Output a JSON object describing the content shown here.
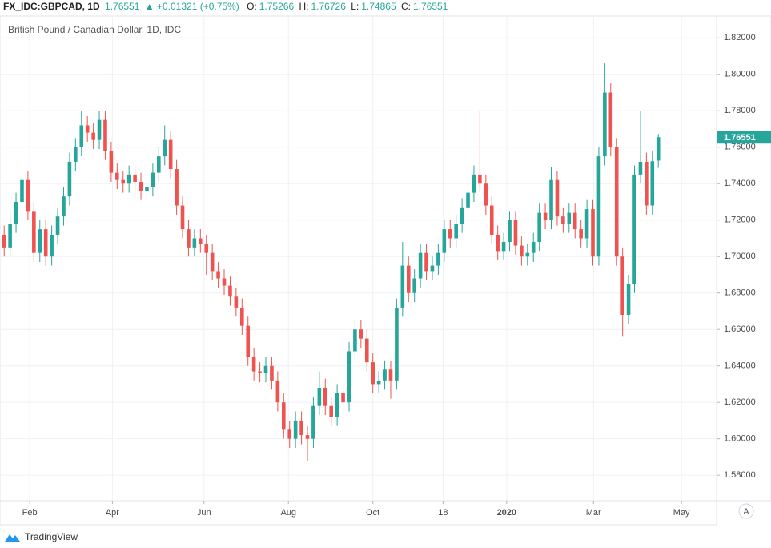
{
  "header": {
    "symbol": "FX_IDC:GBPCAD, 1D",
    "change": "+0.01321 (+0.75%)",
    "open_label": "O:",
    "high_label": "H:",
    "low_label": "L:",
    "close_label": "C:",
    "subtitle": "British Pound / Canadian Dollar, 1D, IDC"
  },
  "footer": {
    "brand": "TradingView",
    "auto_button": "A"
  },
  "chart_data": {
    "type": "candlestick",
    "up_color": "#26a69a",
    "down_color": "#ef5350",
    "grid": true,
    "xlim": [
      -0.7,
      119.8
    ],
    "ylim": [
      1.566,
      1.832
    ],
    "xticks": [
      {
        "value": 4.3,
        "label": "Feb"
      },
      {
        "value": 18.2,
        "label": "Apr"
      },
      {
        "value": 33.6,
        "label": "Jun"
      },
      {
        "value": 47.8,
        "label": "Aug"
      },
      {
        "value": 62.0,
        "label": "Oct"
      },
      {
        "value": 73.8,
        "label": "18"
      },
      {
        "value": 84.5,
        "label": "2020"
      },
      {
        "value": 99.1,
        "label": "Mar"
      },
      {
        "value": 113.9,
        "label": "May"
      }
    ],
    "yticks": [
      {
        "value": 1.58,
        "label": "1.58000"
      },
      {
        "value": 1.6,
        "label": "1.60000"
      },
      {
        "value": 1.62,
        "label": "1.62000"
      },
      {
        "value": 1.64,
        "label": "1.64000"
      },
      {
        "value": 1.66,
        "label": "1.66000"
      },
      {
        "value": 1.68,
        "label": "1.68000"
      },
      {
        "value": 1.7,
        "label": "1.70000"
      },
      {
        "value": 1.72,
        "label": "1.72000"
      },
      {
        "value": 1.74,
        "label": "1.74000"
      },
      {
        "value": 1.76,
        "label": "1.76000"
      },
      {
        "value": 1.78,
        "label": "1.78000"
      },
      {
        "value": 1.8,
        "label": "1.80000"
      },
      {
        "value": 1.82,
        "label": "1.82000"
      }
    ],
    "x": [
      0,
      1,
      2,
      3,
      4,
      5,
      6,
      7,
      8,
      9,
      10,
      11,
      12,
      13,
      14,
      15,
      16,
      17,
      18,
      19,
      20,
      21,
      22,
      23,
      24,
      25,
      26,
      27,
      28,
      29,
      30,
      31,
      32,
      33,
      34,
      35,
      36,
      37,
      38,
      39,
      40,
      41,
      42,
      43,
      44,
      45,
      46,
      47,
      48,
      49,
      50,
      51,
      52,
      53,
      54,
      55,
      56,
      57,
      58,
      59,
      60,
      61,
      62,
      63,
      64,
      65,
      66,
      67,
      68,
      69,
      70,
      71,
      72,
      73,
      74,
      75,
      76,
      77,
      78,
      79,
      80,
      81,
      82,
      83,
      84,
      85,
      86,
      87,
      88,
      89,
      90,
      91,
      92,
      93,
      94,
      95,
      96,
      97,
      98,
      99,
      100,
      101,
      102,
      103,
      104,
      105,
      106,
      107,
      108,
      109,
      110
    ],
    "open": [
      1.712,
      1.705,
      1.718,
      1.73,
      1.742,
      1.725,
      1.702,
      1.715,
      1.7,
      1.712,
      1.722,
      1.733,
      1.752,
      1.76,
      1.772,
      1.768,
      1.764,
      1.775,
      1.758,
      1.746,
      1.742,
      1.74,
      1.745,
      1.741,
      1.736,
      1.738,
      1.746,
      1.755,
      1.764,
      1.748,
      1.728,
      1.715,
      1.705,
      1.71,
      1.707,
      1.702,
      1.692,
      1.688,
      1.684,
      1.678,
      1.672,
      1.662,
      1.645,
      1.637,
      1.636,
      1.64,
      1.632,
      1.62,
      1.605,
      1.6,
      1.61,
      1.602,
      1.6,
      1.618,
      1.628,
      1.618,
      1.612,
      1.625,
      1.62,
      1.648,
      1.66,
      1.655,
      1.642,
      1.63,
      1.632,
      1.638,
      1.632,
      1.672,
      1.695,
      1.68,
      1.688,
      1.702,
      1.692,
      1.695,
      1.702,
      1.715,
      1.71,
      1.718,
      1.727,
      1.735,
      1.745,
      1.74,
      1.728,
      1.712,
      1.703,
      1.708,
      1.72,
      1.706,
      1.7,
      1.702,
      1.708,
      1.724,
      1.72,
      1.742,
      1.722,
      1.718,
      1.724,
      1.715,
      1.71,
      1.726,
      1.7,
      1.755,
      1.79,
      1.76,
      1.7,
      1.668,
      1.685,
      1.745,
      1.752,
      1.728,
      1.75266
    ],
    "high": [
      1.717,
      1.723,
      1.735,
      1.747,
      1.747,
      1.73,
      1.72,
      1.72,
      1.717,
      1.727,
      1.738,
      1.757,
      1.765,
      1.78,
      1.777,
      1.773,
      1.78,
      1.78,
      1.763,
      1.751,
      1.747,
      1.75,
      1.75,
      1.746,
      1.743,
      1.751,
      1.76,
      1.772,
      1.769,
      1.753,
      1.733,
      1.72,
      1.715,
      1.715,
      1.712,
      1.707,
      1.697,
      1.693,
      1.689,
      1.683,
      1.677,
      1.667,
      1.65,
      1.642,
      1.645,
      1.645,
      1.637,
      1.625,
      1.61,
      1.615,
      1.615,
      1.607,
      1.623,
      1.637,
      1.633,
      1.623,
      1.63,
      1.63,
      1.653,
      1.665,
      1.665,
      1.66,
      1.647,
      1.637,
      1.643,
      1.643,
      1.677,
      1.708,
      1.7,
      1.693,
      1.707,
      1.707,
      1.7,
      1.707,
      1.72,
      1.72,
      1.723,
      1.732,
      1.74,
      1.75,
      1.78,
      1.745,
      1.733,
      1.717,
      1.713,
      1.725,
      1.725,
      1.711,
      1.707,
      1.713,
      1.729,
      1.729,
      1.749,
      1.747,
      1.727,
      1.729,
      1.729,
      1.72,
      1.731,
      1.731,
      1.76,
      1.806,
      1.795,
      1.765,
      1.705,
      1.69,
      1.75,
      1.78,
      1.757,
      1.758,
      1.76726
    ],
    "low": [
      1.7,
      1.7,
      1.713,
      1.725,
      1.72,
      1.697,
      1.697,
      1.695,
      1.695,
      1.707,
      1.717,
      1.728,
      1.747,
      1.755,
      1.763,
      1.759,
      1.759,
      1.753,
      1.741,
      1.737,
      1.735,
      1.735,
      1.736,
      1.731,
      1.731,
      1.733,
      1.741,
      1.75,
      1.743,
      1.723,
      1.71,
      1.7,
      1.7,
      1.702,
      1.69,
      1.687,
      1.683,
      1.679,
      1.673,
      1.667,
      1.657,
      1.64,
      1.632,
      1.631,
      1.631,
      1.627,
      1.615,
      1.6,
      1.595,
      1.595,
      1.597,
      1.588,
      1.595,
      1.613,
      1.613,
      1.607,
      1.607,
      1.615,
      1.615,
      1.643,
      1.65,
      1.637,
      1.625,
      1.625,
      1.627,
      1.622,
      1.627,
      1.667,
      1.675,
      1.675,
      1.683,
      1.687,
      1.687,
      1.69,
      1.697,
      1.705,
      1.705,
      1.713,
      1.722,
      1.73,
      1.735,
      1.723,
      1.707,
      1.698,
      1.698,
      1.703,
      1.701,
      1.695,
      1.695,
      1.697,
      1.703,
      1.715,
      1.715,
      1.717,
      1.713,
      1.713,
      1.71,
      1.705,
      1.705,
      1.695,
      1.695,
      1.75,
      1.755,
      1.695,
      1.656,
      1.663,
      1.68,
      1.74,
      1.723,
      1.723,
      1.74865
    ],
    "close": [
      1.705,
      1.718,
      1.73,
      1.742,
      1.725,
      1.702,
      1.715,
      1.7,
      1.712,
      1.722,
      1.733,
      1.752,
      1.76,
      1.772,
      1.768,
      1.764,
      1.775,
      1.758,
      1.746,
      1.742,
      1.74,
      1.745,
      1.741,
      1.736,
      1.738,
      1.746,
      1.755,
      1.764,
      1.748,
      1.728,
      1.715,
      1.705,
      1.71,
      1.707,
      1.702,
      1.692,
      1.688,
      1.684,
      1.678,
      1.672,
      1.662,
      1.645,
      1.637,
      1.636,
      1.64,
      1.632,
      1.62,
      1.605,
      1.6,
      1.61,
      1.602,
      1.6,
      1.618,
      1.628,
      1.618,
      1.612,
      1.625,
      1.62,
      1.648,
      1.66,
      1.655,
      1.642,
      1.63,
      1.632,
      1.638,
      1.632,
      1.672,
      1.695,
      1.68,
      1.688,
      1.702,
      1.692,
      1.695,
      1.702,
      1.715,
      1.71,
      1.718,
      1.727,
      1.735,
      1.745,
      1.74,
      1.728,
      1.712,
      1.703,
      1.708,
      1.72,
      1.706,
      1.7,
      1.702,
      1.708,
      1.724,
      1.72,
      1.742,
      1.722,
      1.718,
      1.724,
      1.715,
      1.71,
      1.726,
      1.7,
      1.755,
      1.79,
      1.76,
      1.7,
      1.668,
      1.685,
      1.745,
      1.752,
      1.728,
      1.7523,
      1.76551
    ]
  }
}
